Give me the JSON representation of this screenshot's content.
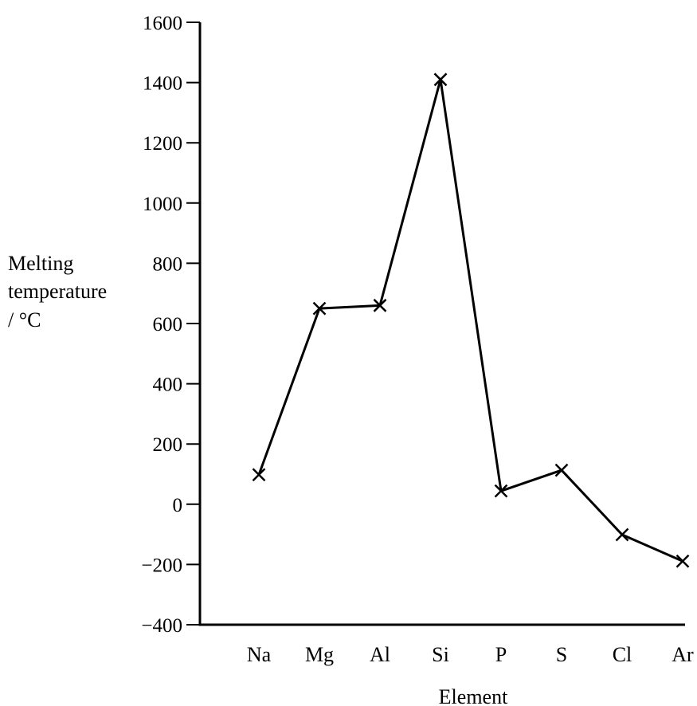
{
  "chart_data": {
    "type": "line",
    "categories": [
      "Na",
      "Mg",
      "Al",
      "Si",
      "P",
      "S",
      "Cl",
      "Ar"
    ],
    "values": [
      98,
      650,
      660,
      1410,
      44,
      113,
      -101,
      -189
    ],
    "ylabel_lines": [
      "Melting",
      "temperature",
      "/ °C"
    ],
    "xlabel": "Element",
    "yticks": [
      1600,
      1400,
      1200,
      1000,
      800,
      600,
      400,
      200,
      0,
      -200,
      -400
    ],
    "ytick_labels": [
      "1600",
      "1400",
      "1200",
      "1000",
      "800",
      "600",
      "400",
      "200",
      "0",
      "−200",
      "−400"
    ],
    "ylim": [
      -400,
      1600
    ],
    "marker": "cross",
    "grid": false,
    "color": "#000000"
  }
}
